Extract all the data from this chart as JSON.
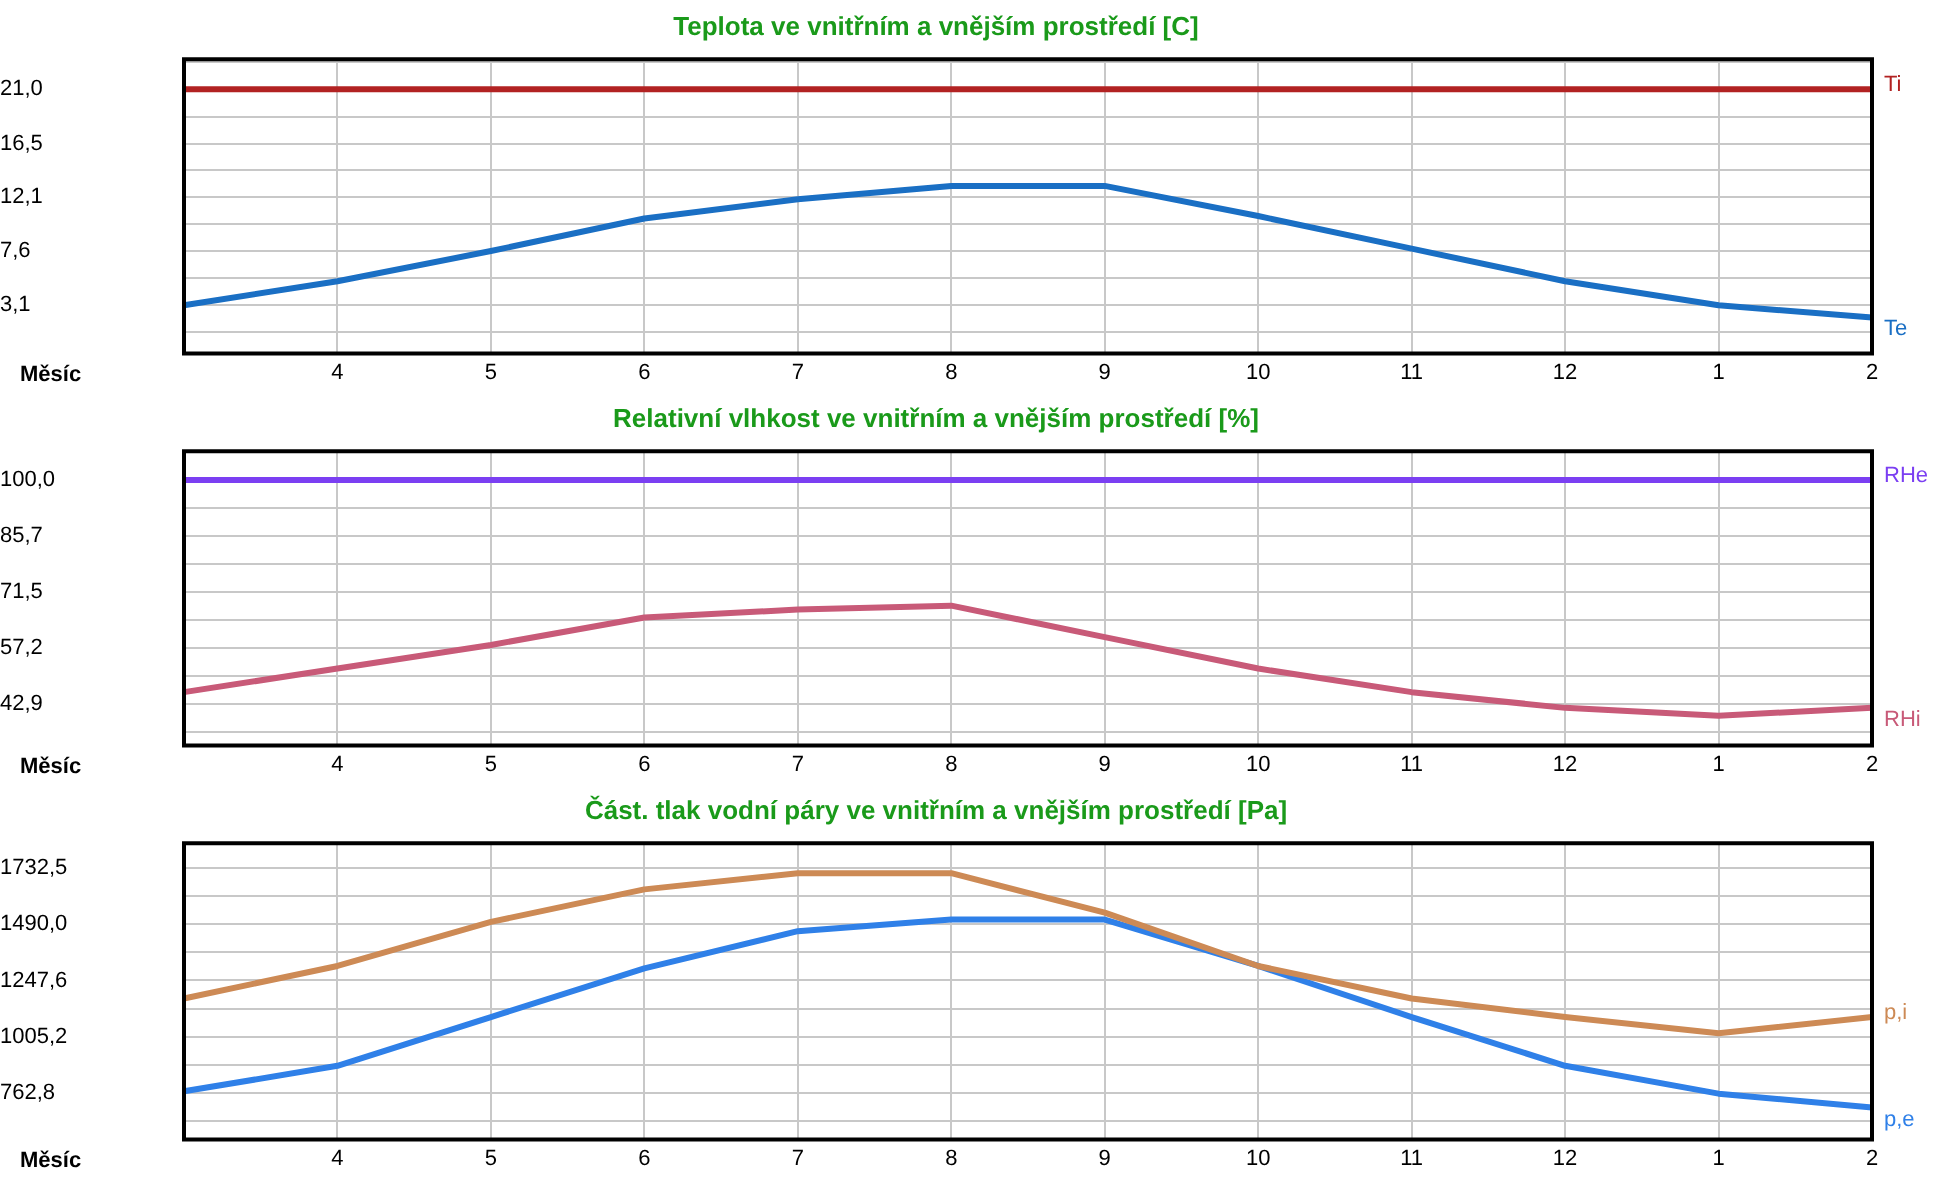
{
  "chart_data": [
    {
      "type": "line",
      "title": "Teplota ve vnitřním a vnějším prostředí [C]",
      "xlabel": "Měsíc",
      "categories": [
        null,
        "4",
        "5",
        "6",
        "7",
        "8",
        "9",
        "10",
        "11",
        "12",
        "1",
        "2"
      ],
      "ylim": [
        -0.9,
        23.5
      ],
      "yticks": [
        {
          "value": 0.85,
          "label": null
        },
        {
          "value": 3.1,
          "label": "3,1"
        },
        {
          "value": 5.35,
          "label": null
        },
        {
          "value": 7.6,
          "label": "7,6"
        },
        {
          "value": 9.85,
          "label": null
        },
        {
          "value": 12.1,
          "label": "12,1"
        },
        {
          "value": 14.3,
          "label": null
        },
        {
          "value": 16.5,
          "label": "16,5"
        },
        {
          "value": 18.75,
          "label": null
        },
        {
          "value": 21,
          "label": "21,0"
        },
        {
          "value": 23.25,
          "label": null
        }
      ],
      "grid": true,
      "legend": false,
      "marker": "none",
      "series": [
        {
          "name": "Ti",
          "color": "#b22222",
          "values": [
            21,
            21,
            21,
            21,
            21,
            21,
            21,
            21,
            21,
            21,
            21,
            21
          ]
        },
        {
          "name": "Te",
          "color": "#1a6fc4",
          "values": [
            3.1,
            5.1,
            7.6,
            10.3,
            11.9,
            13.0,
            13.0,
            10.5,
            7.8,
            5.1,
            3.1,
            2.1
          ]
        }
      ]
    },
    {
      "type": "line",
      "title": "Relativní vlhkost ve vnitřním a vnějším prostředí [%]",
      "xlabel": "Měsíc",
      "categories": [
        null,
        "4",
        "5",
        "6",
        "7",
        "8",
        "9",
        "10",
        "11",
        "12",
        "1",
        "2"
      ],
      "ylim": [
        32.4,
        107.3
      ],
      "yticks": [
        {
          "value": 35.75,
          "label": null
        },
        {
          "value": 42.9,
          "label": "42,9"
        },
        {
          "value": 50.05,
          "label": null
        },
        {
          "value": 57.2,
          "label": "57,2"
        },
        {
          "value": 64.35,
          "label": null
        },
        {
          "value": 71.5,
          "label": "71,5"
        },
        {
          "value": 78.6,
          "label": null
        },
        {
          "value": 85.7,
          "label": "85,7"
        },
        {
          "value": 92.85,
          "label": null
        },
        {
          "value": 100,
          "label": "100,0"
        }
      ],
      "grid": true,
      "legend": false,
      "marker": "none",
      "series": [
        {
          "name": "RHe",
          "color": "#7b3ff2",
          "values": [
            100,
            100,
            100,
            100,
            100,
            100,
            100,
            100,
            100,
            100,
            100,
            100
          ]
        },
        {
          "name": "RHi",
          "color": "#c85a78",
          "values": [
            46,
            52,
            58,
            65,
            67,
            68,
            60,
            52,
            46,
            42,
            40,
            42
          ]
        }
      ]
    },
    {
      "type": "line",
      "title": "Část. tlak vodní páry ve vnitřním a vnějším prostředí [Pa]",
      "xlabel": "Měsíc",
      "categories": [
        null,
        "4",
        "5",
        "6",
        "7",
        "8",
        "9",
        "10",
        "11",
        "12",
        "1",
        "2"
      ],
      "ylim": [
        562,
        1839
      ],
      "yticks": [
        {
          "value": 641.6,
          "label": null
        },
        {
          "value": 762.8,
          "label": "762,8"
        },
        {
          "value": 884,
          "label": null
        },
        {
          "value": 1005.2,
          "label": "1005,2"
        },
        {
          "value": 1126.4,
          "label": null
        },
        {
          "value": 1247.6,
          "label": "1247,6"
        },
        {
          "value": 1368.8,
          "label": null
        },
        {
          "value": 1490,
          "label": "1490,0"
        },
        {
          "value": 1611.25,
          "label": null
        },
        {
          "value": 1732.5,
          "label": "1732,5"
        }
      ],
      "grid": true,
      "legend": false,
      "marker": "none",
      "series": [
        {
          "name": "p,i",
          "color": "#cd8a55",
          "values": [
            1170,
            1310,
            1500,
            1640,
            1710,
            1710,
            1540,
            1310,
            1170,
            1090,
            1020,
            1090
          ]
        },
        {
          "name": "p,e",
          "color": "#2f80e8",
          "values": [
            770,
            880,
            1090,
            1300,
            1460,
            1510,
            1510,
            1310,
            1090,
            880,
            760,
            700
          ]
        }
      ]
    }
  ]
}
